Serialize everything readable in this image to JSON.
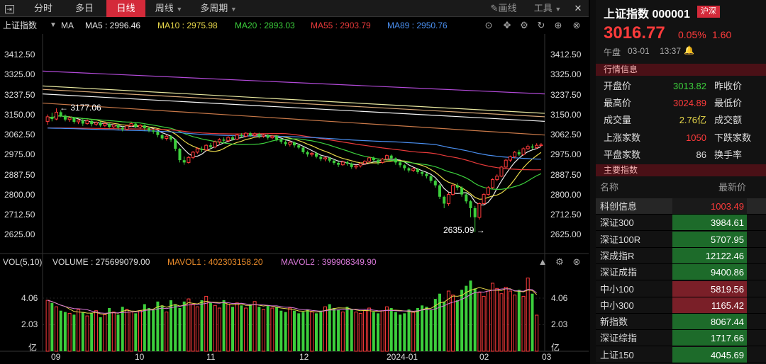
{
  "toolbar": {
    "expand_icon": "expand-icon",
    "tabs": [
      {
        "label": "分时",
        "active": false
      },
      {
        "label": "多日",
        "active": false
      },
      {
        "label": "日线",
        "active": true
      },
      {
        "label": "周线",
        "active": false
      },
      {
        "label": "多周期",
        "active": false
      }
    ],
    "draw_label": "画线",
    "tools_label": "工具",
    "close_label": "✕"
  },
  "chart_legend": {
    "index_name": "上证指数",
    "ma_label": "MA",
    "ma": [
      {
        "text": "MA5 : 2996.46",
        "color": "#e8e8e8"
      },
      {
        "text": "MA10 : 2975.98",
        "color": "#e8d84a"
      },
      {
        "text": "MA20 : 2893.03",
        "color": "#3ccf3c"
      },
      {
        "text": "MA55 : 2903.79",
        "color": "#e83a3a"
      },
      {
        "text": "MA89 : 2950.76",
        "color": "#4a8ff0"
      }
    ]
  },
  "price_axis": [
    "3412.50",
    "3325.00",
    "3237.50",
    "3150.00",
    "3062.50",
    "2975.00",
    "2887.50",
    "2800.00",
    "2712.50",
    "2625.00"
  ],
  "annotations": {
    "high": "3177.06",
    "low": "2635.09"
  },
  "volume": {
    "title": "VOL(5,10)",
    "volume_text": "VOLUME : 275699079.00",
    "mavol1_text": "MAVOL1 : 402303158.20",
    "mavol2_text": "MAVOL2 : 399908349.90",
    "axis": [
      "4.06",
      "2.03",
      "亿"
    ]
  },
  "x_axis": [
    "09",
    "10",
    "11",
    "12",
    "2024-01",
    "02",
    "03"
  ],
  "colors": {
    "up": "#ff3b3b",
    "down": "#3ccf3c",
    "accent": "#d42a3a",
    "bg": "#000000"
  },
  "chart_data": {
    "type": "candlestick",
    "title": "上证指数 日线",
    "y_range": [
      2580,
      3440
    ],
    "candles": [
      [
        3120,
        3140,
        3105,
        3150
      ],
      [
        3140,
        3130,
        3120,
        3158
      ],
      [
        3130,
        3160,
        3125,
        3177.06
      ],
      [
        3160,
        3145,
        3138,
        3168
      ],
      [
        3145,
        3128,
        3120,
        3150
      ],
      [
        3128,
        3135,
        3118,
        3142
      ],
      [
        3135,
        3118,
        3110,
        3140
      ],
      [
        3118,
        3125,
        3108,
        3130
      ],
      [
        3125,
        3110,
        3100,
        3132
      ],
      [
        3110,
        3122,
        3105,
        3128
      ],
      [
        3122,
        3108,
        3098,
        3126
      ],
      [
        3108,
        3115,
        3100,
        3120
      ],
      [
        3115,
        3102,
        3095,
        3120
      ],
      [
        3102,
        3110,
        3095,
        3115
      ],
      [
        3110,
        3096,
        3088,
        3114
      ],
      [
        3096,
        3104,
        3090,
        3108
      ],
      [
        3104,
        3092,
        3084,
        3108
      ],
      [
        3092,
        3085,
        3076,
        3098
      ],
      [
        3085,
        3100,
        3080,
        3104
      ],
      [
        3100,
        3110,
        3095,
        3115
      ],
      [
        3110,
        3095,
        3090,
        3115
      ],
      [
        3095,
        3102,
        3088,
        3108
      ],
      [
        3102,
        3090,
        3080,
        3106
      ],
      [
        3090,
        3080,
        3072,
        3094
      ],
      [
        3080,
        3075,
        3066,
        3086
      ],
      [
        3075,
        3060,
        3050,
        3080
      ],
      [
        3060,
        3045,
        3038,
        3066
      ],
      [
        3045,
        3055,
        3036,
        3060
      ],
      [
        3055,
        3040,
        3030,
        3060
      ],
      [
        3040,
        3000,
        2990,
        3044
      ],
      [
        3000,
        2950,
        2940,
        3004
      ],
      [
        2950,
        2940,
        2930,
        2966
      ],
      [
        2940,
        2962,
        2935,
        2968
      ],
      [
        2962,
        2985,
        2955,
        2990
      ],
      [
        2985,
        3000,
        2978,
        3006
      ],
      [
        3000,
        2995,
        2985,
        3010
      ],
      [
        2995,
        3015,
        2990,
        3020
      ],
      [
        3015,
        3008,
        3000,
        3025
      ],
      [
        3008,
        3030,
        3002,
        3036
      ],
      [
        3030,
        3040,
        3022,
        3046
      ],
      [
        3040,
        3035,
        3025,
        3050
      ],
      [
        3035,
        3050,
        3028,
        3055
      ],
      [
        3050,
        3042,
        3035,
        3058
      ],
      [
        3042,
        3060,
        3038,
        3066
      ],
      [
        3060,
        3055,
        3048,
        3068
      ],
      [
        3055,
        3068,
        3050,
        3072
      ],
      [
        3068,
        3058,
        3050,
        3075
      ],
      [
        3058,
        3065,
        3052,
        3072
      ],
      [
        3065,
        3055,
        3046,
        3070
      ],
      [
        3055,
        3060,
        3048,
        3066
      ],
      [
        3060,
        3048,
        3040,
        3064
      ],
      [
        3048,
        3055,
        3042,
        3060
      ],
      [
        3055,
        3040,
        3032,
        3060
      ],
      [
        3040,
        3030,
        3022,
        3046
      ],
      [
        3030,
        3020,
        3012,
        3036
      ],
      [
        3020,
        3028,
        3010,
        3034
      ],
      [
        3028,
        3015,
        3005,
        3032
      ],
      [
        3015,
        3005,
        2998,
        3020
      ],
      [
        3005,
        2985,
        2978,
        3010
      ],
      [
        2985,
        2975,
        2965,
        2992
      ],
      [
        2975,
        2980,
        2966,
        2986
      ],
      [
        2980,
        2965,
        2958,
        2986
      ],
      [
        2965,
        2955,
        2946,
        2970
      ],
      [
        2955,
        2960,
        2945,
        2966
      ],
      [
        2960,
        2948,
        2940,
        2964
      ],
      [
        2948,
        2938,
        2930,
        2954
      ],
      [
        2938,
        2930,
        2920,
        2944
      ],
      [
        2930,
        2942,
        2925,
        2948
      ],
      [
        2942,
        2935,
        2926,
        2948
      ],
      [
        2935,
        2920,
        2912,
        2940
      ],
      [
        2920,
        2925,
        2910,
        2930
      ],
      [
        2925,
        2935,
        2918,
        2940
      ],
      [
        2935,
        2945,
        2930,
        2950
      ],
      [
        2945,
        2960,
        2940,
        2965
      ],
      [
        2960,
        2950,
        2942,
        2966
      ],
      [
        2950,
        2940,
        2930,
        2955
      ],
      [
        2940,
        2955,
        2935,
        2960
      ],
      [
        2955,
        2970,
        2948,
        2975
      ],
      [
        2970,
        2958,
        2950,
        2975
      ],
      [
        2958,
        2940,
        2930,
        2962
      ],
      [
        2940,
        2928,
        2918,
        2946
      ],
      [
        2928,
        2915,
        2905,
        2932
      ],
      [
        2915,
        2905,
        2896,
        2920
      ],
      [
        2905,
        2912,
        2898,
        2918
      ],
      [
        2912,
        2898,
        2890,
        2916
      ],
      [
        2898,
        2890,
        2880,
        2904
      ],
      [
        2890,
        2880,
        2870,
        2895
      ],
      [
        2880,
        2860,
        2850,
        2885
      ],
      [
        2860,
        2840,
        2830,
        2866
      ],
      [
        2840,
        2790,
        2780,
        2845
      ],
      [
        2790,
        2760,
        2740,
        2795
      ],
      [
        2760,
        2800,
        2750,
        2808
      ],
      [
        2800,
        2840,
        2795,
        2846
      ],
      [
        2840,
        2830,
        2818,
        2850
      ],
      [
        2830,
        2800,
        2790,
        2836
      ],
      [
        2800,
        2770,
        2760,
        2806
      ],
      [
        2770,
        2740,
        2700,
        2775
      ],
      [
        2740,
        2700,
        2635.09,
        2750
      ],
      [
        2700,
        2760,
        2690,
        2765
      ],
      [
        2760,
        2800,
        2755,
        2806
      ],
      [
        2800,
        2830,
        2795,
        2836
      ],
      [
        2830,
        2865,
        2825,
        2870
      ],
      [
        2865,
        2880,
        2858,
        2888
      ],
      [
        2880,
        2920,
        2875,
        2925
      ],
      [
        2920,
        2950,
        2915,
        2956
      ],
      [
        2950,
        2965,
        2942,
        2970
      ],
      [
        2965,
        2985,
        2958,
        2990
      ],
      [
        2985,
        2975,
        2968,
        2995
      ],
      [
        2975,
        3000,
        2970,
        3006
      ],
      [
        3000,
        3010,
        2995,
        3018
      ],
      [
        3010,
        3005,
        2998,
        3020
      ],
      [
        3005,
        3015,
        3000,
        3024
      ],
      [
        3013.82,
        3016.77,
        3010,
        3024.89
      ]
    ],
    "volumes": [
      3.9,
      3.7,
      3.4,
      3.1,
      3.0,
      2.9,
      2.8,
      3.2,
      3.0,
      2.7,
      2.9,
      3.1,
      2.6,
      2.8,
      3.3,
      3.0,
      2.8,
      3.4,
      3.2,
      3.0,
      2.9,
      3.1,
      3.6,
      3.3,
      3.2,
      3.8,
      3.5,
      3.0,
      3.9,
      3.6,
      3.3,
      3.8,
      4.0,
      3.6,
      3.4,
      3.9,
      4.2,
      3.7,
      3.5,
      3.3,
      3.9,
      3.6,
      3.4,
      3.7,
      3.5,
      3.3,
      3.6,
      3.8,
      3.4,
      3.2,
      3.5,
      3.3,
      3.4,
      3.1,
      3.0,
      3.3,
      3.1,
      2.9,
      3.0,
      3.2,
      3.0,
      2.9,
      3.1,
      3.4,
      3.6,
      3.3,
      3.2,
      3.0,
      3.4,
      3.2,
      3.0,
      2.9,
      3.1,
      3.3,
      3.0,
      2.9,
      3.1,
      3.4,
      3.3,
      3.0,
      2.8,
      2.9,
      3.2,
      3.0,
      3.3,
      3.5,
      3.4,
      3.2,
      4.0,
      4.4,
      3.8,
      4.6,
      4.3,
      3.9,
      4.7,
      5.0,
      5.4,
      4.8,
      4.5,
      4.2,
      4.6,
      5.2,
      4.8,
      4.4,
      4.9,
      4.6,
      4.3,
      4.7,
      4.2,
      5.6,
      4.4,
      2.76
    ],
    "ma_lines": [
      {
        "name": "MA5",
        "color": "#e8e8e8"
      },
      {
        "name": "MA10",
        "color": "#e8d84a"
      },
      {
        "name": "MA20",
        "color": "#3ccf3c"
      },
      {
        "name": "MA55",
        "color": "#e83a3a"
      },
      {
        "name": "MA89",
        "color": "#4a8ff0"
      }
    ],
    "long_ma_lines": [
      {
        "color": "#b24ad8",
        "start": 3340,
        "end": 3240
      },
      {
        "color": "#e8e8a0",
        "start": 3275,
        "end": 3155
      },
      {
        "color": "#d8a878",
        "start": 3260,
        "end": 3140
      },
      {
        "color": "#f5f5f5",
        "start": 3240,
        "end": 3120
      },
      {
        "color": "#c87848",
        "start": 3200,
        "end": 3060
      }
    ],
    "xlabel": "",
    "ylabel": ""
  },
  "quote": {
    "title": "上证指数 000001",
    "badge": "沪深",
    "price": "3016.77",
    "change_pct": "0.05%",
    "change": "1.60",
    "session": "午盘",
    "date": "03-01",
    "time": "13:37",
    "section1": "行情信息",
    "rows": [
      {
        "k": "开盘价",
        "v": "3013.82",
        "vcolor": "#3ccf3c",
        "k2": "昨收价"
      },
      {
        "k": "最高价",
        "v": "3024.89",
        "vcolor": "#ff3b3b",
        "k2": "最低价"
      },
      {
        "k": "成交量",
        "v": "2.76亿",
        "vcolor": "#e8d84a",
        "k2": "成交额"
      },
      {
        "k": "上涨家数",
        "v": "1050",
        "vcolor": "#ff3b3b",
        "k2": "下跌家数"
      },
      {
        "k": "平盘家数",
        "v": "86",
        "vcolor": "#dddddd",
        "k2": "换手率"
      }
    ],
    "section2": "主要指数",
    "index_header": {
      "name": "名称",
      "latest": "最新价"
    },
    "indices": [
      {
        "name": "科创信息",
        "value": "1003.49",
        "bg": "#1a1a1a",
        "color": "#ff3b3b"
      },
      {
        "name": "深证300",
        "value": "3984.61",
        "bg": "#1d6b2a",
        "color": "#ffffff"
      },
      {
        "name": "深证100R",
        "value": "5707.95",
        "bg": "#1d6b2a",
        "color": "#ffffff"
      },
      {
        "name": "深成指R",
        "value": "12122.46",
        "bg": "#1d6b2a",
        "color": "#ffffff"
      },
      {
        "name": "深证成指",
        "value": "9400.86",
        "bg": "#1d6b2a",
        "color": "#ffffff"
      },
      {
        "name": "中小100",
        "value": "5819.56",
        "bg": "#7a1f28",
        "color": "#ffffff"
      },
      {
        "name": "中小300",
        "value": "1165.42",
        "bg": "#7a1f28",
        "color": "#ffffff"
      },
      {
        "name": "新指数",
        "value": "8067.44",
        "bg": "#1d6b2a",
        "color": "#ffffff"
      },
      {
        "name": "深证综指",
        "value": "1717.66",
        "bg": "#1d6b2a",
        "color": "#ffffff"
      },
      {
        "name": "上证150",
        "value": "4045.69",
        "bg": "#1d6b2a",
        "color": "#ffffff"
      }
    ]
  }
}
